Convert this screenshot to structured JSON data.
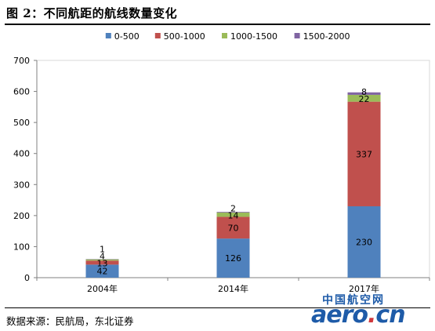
{
  "header": {
    "title": "图 2：不同航距的航线数量变化"
  },
  "footer": {
    "source": "数据来源：民航局，东北证券"
  },
  "watermark": {
    "cn": "中国航空网",
    "en_left": "aero",
    "en_dot": ".",
    "en_right": "cn"
  },
  "chart_data": {
    "type": "bar",
    "stacked": true,
    "title": "",
    "xlabel": "",
    "ylabel": "",
    "categories": [
      "2004年",
      "2014年",
      "2017年"
    ],
    "ylim": [
      0,
      700
    ],
    "yticks": [
      0,
      100,
      200,
      300,
      400,
      500,
      600,
      700
    ],
    "grid": false,
    "legend_position": "top",
    "series": [
      {
        "name": "0-500",
        "color": "#4f81bd",
        "values": [
          42,
          126,
          230
        ],
        "labels": [
          "42",
          "126",
          "230"
        ]
      },
      {
        "name": "500-1000",
        "color": "#c0504d",
        "values": [
          13,
          70,
          337
        ],
        "labels": [
          "13",
          "70",
          "337"
        ]
      },
      {
        "name": "1000-1500",
        "color": "#9bbb59",
        "values": [
          4,
          14,
          22
        ],
        "labels": [
          "4",
          "14",
          "22"
        ]
      },
      {
        "name": "1500-2000",
        "color": "#8064a2",
        "values": [
          1,
          2,
          8
        ],
        "labels": [
          "1",
          "2",
          "8"
        ]
      }
    ]
  }
}
